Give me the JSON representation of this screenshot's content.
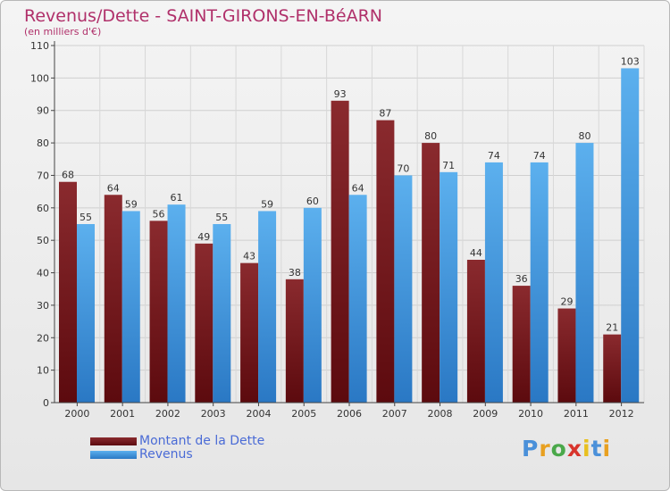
{
  "chart_data": {
    "type": "bar",
    "title": "Revenus/Dette - SAINT-GIRONS-EN-BéARN",
    "subtitle": "(en milliers d'€)",
    "categories": [
      "2000",
      "2001",
      "2002",
      "2003",
      "2004",
      "2005",
      "2006",
      "2007",
      "2008",
      "2009",
      "2010",
      "2011",
      "2012"
    ],
    "series": [
      {
        "name": "Montant de la Dette",
        "values": [
          68,
          64,
          56,
          49,
          43,
          38,
          93,
          87,
          80,
          44,
          36,
          29,
          21
        ],
        "color": "#7a1a1e"
      },
      {
        "name": "Revenus",
        "values": [
          55,
          59,
          61,
          55,
          59,
          60,
          64,
          70,
          71,
          74,
          74,
          80,
          103
        ],
        "color": "#4fa3e6"
      }
    ],
    "ylim": [
      0,
      110
    ],
    "yticks": [
      0,
      10,
      20,
      30,
      40,
      50,
      60,
      70,
      80,
      90,
      100,
      110
    ],
    "grid": true,
    "legend": "bottom-left"
  },
  "logo": {
    "letters": [
      "P",
      "r",
      "o",
      "x",
      "i",
      "t",
      "i"
    ],
    "colors": [
      "#4a90d9",
      "#e8a020",
      "#4aa84a",
      "#d8342c",
      "#e8c020",
      "#4a90d9",
      "#e8a020"
    ]
  }
}
